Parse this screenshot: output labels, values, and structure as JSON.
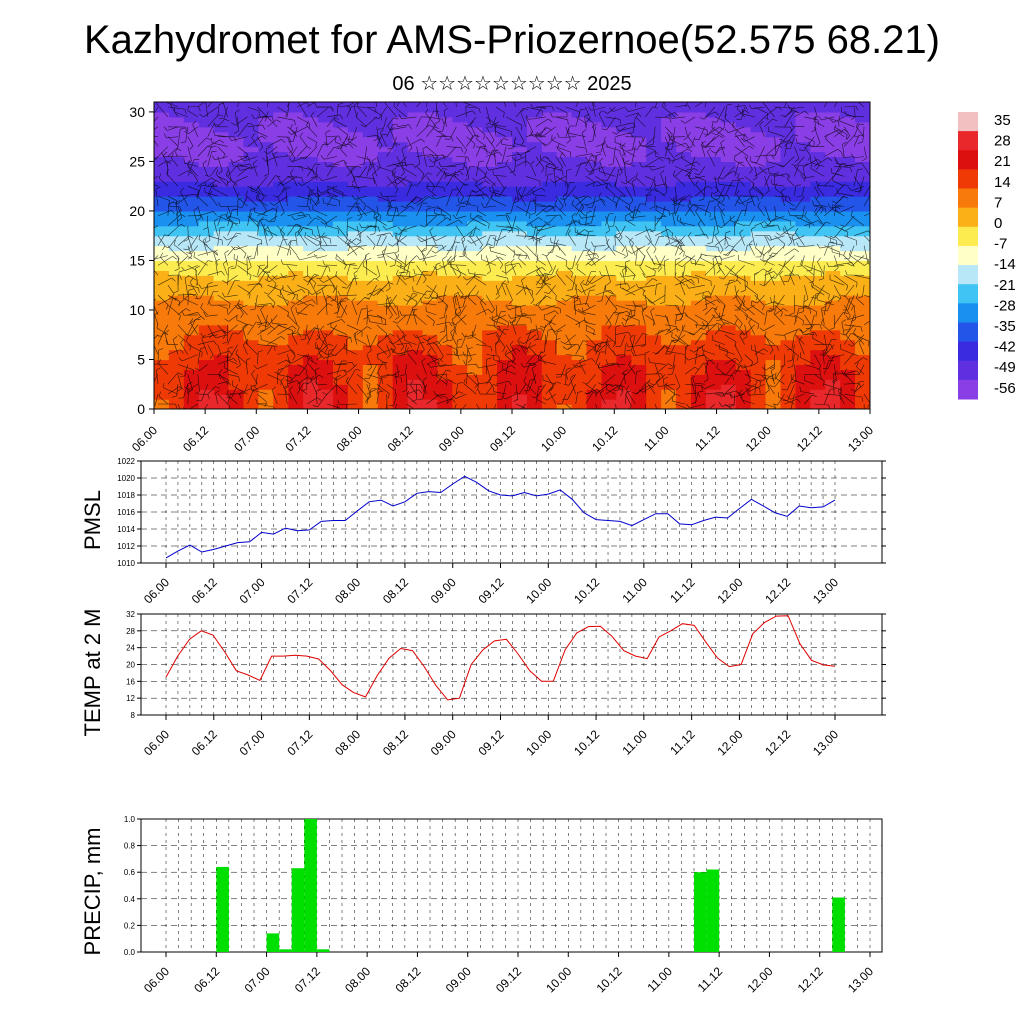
{
  "header": {
    "title": "Kazhydromet for AMS-Priozernoe(52.575 68.21)",
    "subtitle": "06 ☆☆☆☆☆☆☆☆☆ 2025"
  },
  "time_ticks": [
    "06.00",
    "06.12",
    "07.00",
    "07.12",
    "08.00",
    "08.12",
    "09.00",
    "09.12",
    "10.00",
    "10.12",
    "11.00",
    "11.12",
    "12.00",
    "12.12",
    "13.00"
  ],
  "colors": {
    "pmsl_line": "#0000cc",
    "temp_line": "#e00000",
    "precip_bar": "#00e000",
    "grid": "#000000"
  },
  "chart_data": [
    {
      "type": "heatmap",
      "title": "",
      "ylabel": "",
      "ylim": [
        0,
        31
      ],
      "yticks": [
        0,
        5,
        10,
        15,
        20,
        25,
        30
      ],
      "x_ticks_ref": "time_ticks",
      "colorbar": {
        "labels": [
          "35",
          "28",
          "21",
          "14",
          "7",
          "0",
          "-7",
          "-14",
          "-21",
          "-28",
          "-35",
          "-42",
          "-49",
          "-56"
        ],
        "levels": [
          35,
          28,
          21,
          14,
          7,
          0,
          -7,
          -14,
          -21,
          -28,
          -35,
          -42,
          -49,
          -56
        ],
        "colors": [
          "#f2c0c0",
          "#e8282a",
          "#dd1010",
          "#f03a06",
          "#f77a0a",
          "#fbb018",
          "#fdec50",
          "#ffffc8",
          "#b8e8f8",
          "#40c4f4",
          "#1a90f0",
          "#2255e8",
          "#3a2ae0",
          "#6030e0",
          "#8a3ee6"
        ]
      },
      "profile_by_level": [
        [
          0,
          22
        ],
        [
          3,
          21
        ],
        [
          6,
          17
        ],
        [
          9,
          11
        ],
        [
          12,
          5
        ],
        [
          14,
          -2
        ],
        [
          16,
          -12
        ],
        [
          17.5,
          -20
        ],
        [
          19,
          -30
        ],
        [
          21,
          -40
        ],
        [
          22.5,
          -48
        ],
        [
          24,
          -54
        ],
        [
          26,
          -57
        ],
        [
          28,
          -57
        ],
        [
          30,
          -55
        ],
        [
          31,
          -52
        ]
      ],
      "wind_barbs": "present"
    },
    {
      "type": "line",
      "ylabel": "PMSL",
      "ylim": [
        1010,
        1022
      ],
      "yticks": [
        1010,
        1012,
        1014,
        1016,
        1018,
        1020,
        1022
      ],
      "x_ticks_ref": "time_ticks",
      "series": [
        {
          "values": [
            1010.6,
            1011.4,
            1012.1,
            1011.3,
            1011.6,
            1012.0,
            1012.4,
            1012.5,
            1013.6,
            1013.4,
            1014.1,
            1013.8,
            1013.9,
            1014.9,
            1015.0,
            1015.0,
            1016.1,
            1017.2,
            1017.4,
            1016.7,
            1017.2,
            1018.2,
            1018.4,
            1018.3,
            1019.3,
            1020.2,
            1019.5,
            1018.5,
            1018.0,
            1017.9,
            1018.3,
            1017.9,
            1018.1,
            1018.6,
            1017.5,
            1015.9,
            1015.1,
            1015.0,
            1014.9,
            1014.4,
            1015.1,
            1015.8,
            1015.8,
            1014.6,
            1014.5,
            1015.0,
            1015.4,
            1015.3,
            1016.4,
            1017.5,
            1016.7,
            1015.9,
            1015.5,
            1016.7,
            1016.5,
            1016.6,
            1017.4
          ]
        }
      ]
    },
    {
      "type": "line",
      "ylabel": "TEMP at 2 M",
      "ylim": [
        8,
        32
      ],
      "yticks": [
        8,
        12,
        16,
        20,
        24,
        28,
        32
      ],
      "x_ticks_ref": "time_ticks",
      "series": [
        {
          "values": [
            17,
            22,
            26,
            28,
            27,
            23,
            18.5,
            17.5,
            16.2,
            22,
            22,
            22.2,
            22,
            21.3,
            18.6,
            15.2,
            13.3,
            12.3,
            17.4,
            21.5,
            23.8,
            23.3,
            19.5,
            15,
            11.6,
            12,
            20,
            23.5,
            25.6,
            26,
            22.5,
            18.5,
            16,
            16,
            23.5,
            27.5,
            29,
            29.1,
            26.7,
            23.3,
            22,
            21.4,
            26.5,
            28,
            29.7,
            29.3,
            25.3,
            21.5,
            19.5,
            20,
            27.3,
            30,
            31.5,
            31.6,
            25,
            21,
            19.9,
            19.6
          ]
        }
      ]
    },
    {
      "type": "bar",
      "ylabel": "PRECIP, mm",
      "ylim": [
        0,
        1.0
      ],
      "yticks": [
        "0.0",
        "0.2",
        "0.4",
        "0.6",
        "0.8",
        "1.0"
      ],
      "x_ticks_ref": "time_ticks",
      "bars": [
        {
          "t": 4.5,
          "value": 0.64
        },
        {
          "t": 8.5,
          "value": 0.14
        },
        {
          "t": 9.5,
          "value": 0.02
        },
        {
          "t": 10.5,
          "value": 0.63
        },
        {
          "t": 11.5,
          "value": 1.0
        },
        {
          "t": 12.5,
          "value": 0.02
        },
        {
          "t": 42.5,
          "value": 0.6
        },
        {
          "t": 43.5,
          "value": 0.62
        },
        {
          "t": 53.5,
          "value": 0.41
        }
      ]
    }
  ]
}
